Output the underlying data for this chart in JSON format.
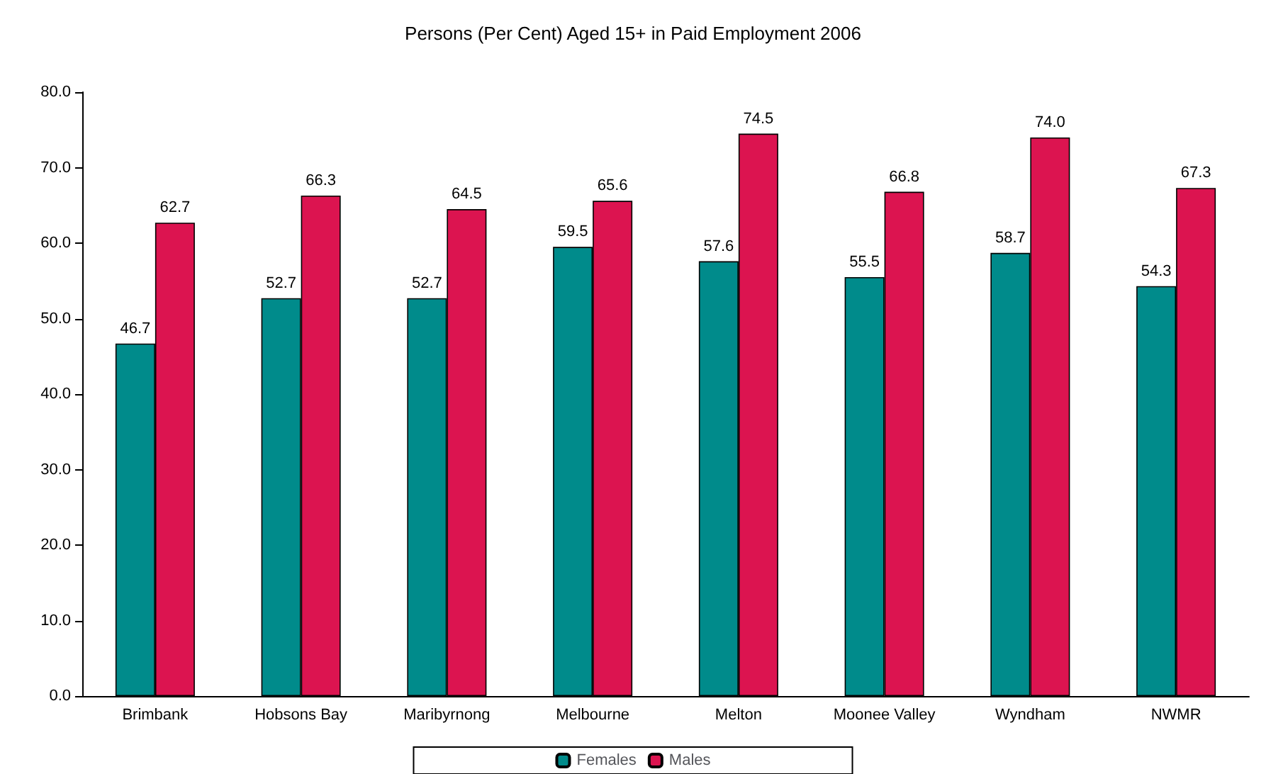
{
  "chart_data": {
    "type": "bar",
    "title": "Persons (Per Cent) Aged 15+ in Paid Employment 2006",
    "categories": [
      "Brimbank",
      "Hobsons Bay",
      "Maribyrnong",
      "Melbourne",
      "Melton",
      "Moonee Valley",
      "Wyndham",
      "NWMR"
    ],
    "series": [
      {
        "name": "Females",
        "color": "#008b8b",
        "values": [
          46.7,
          52.7,
          52.7,
          59.5,
          57.6,
          55.5,
          58.7,
          54.3
        ],
        "value_labels": [
          "46.7",
          "52.7",
          "52.7",
          "59.5",
          "57.6",
          "55.5",
          "58.7",
          "54.3"
        ]
      },
      {
        "name": "Males",
        "color": "#dc1450",
        "values": [
          62.7,
          66.3,
          64.5,
          65.6,
          74.5,
          66.8,
          74.0,
          67.3
        ],
        "value_labels": [
          "62.7",
          "66.3",
          "64.5",
          "65.6",
          "74.5",
          "66.8",
          "74.0",
          "67.3"
        ]
      }
    ],
    "ylim": [
      0,
      80
    ],
    "yticks": [
      {
        "value": 0,
        "label": "0.0"
      },
      {
        "value": 10,
        "label": "10.0"
      },
      {
        "value": 20,
        "label": "20.0"
      },
      {
        "value": 30,
        "label": "30.0"
      },
      {
        "value": 40,
        "label": "40.0"
      },
      {
        "value": 50,
        "label": "50.0"
      },
      {
        "value": 60,
        "label": "60.0"
      },
      {
        "value": 70,
        "label": "70.0"
      },
      {
        "value": 80,
        "label": "80.0"
      }
    ],
    "grid": false,
    "legend": "bottom"
  }
}
